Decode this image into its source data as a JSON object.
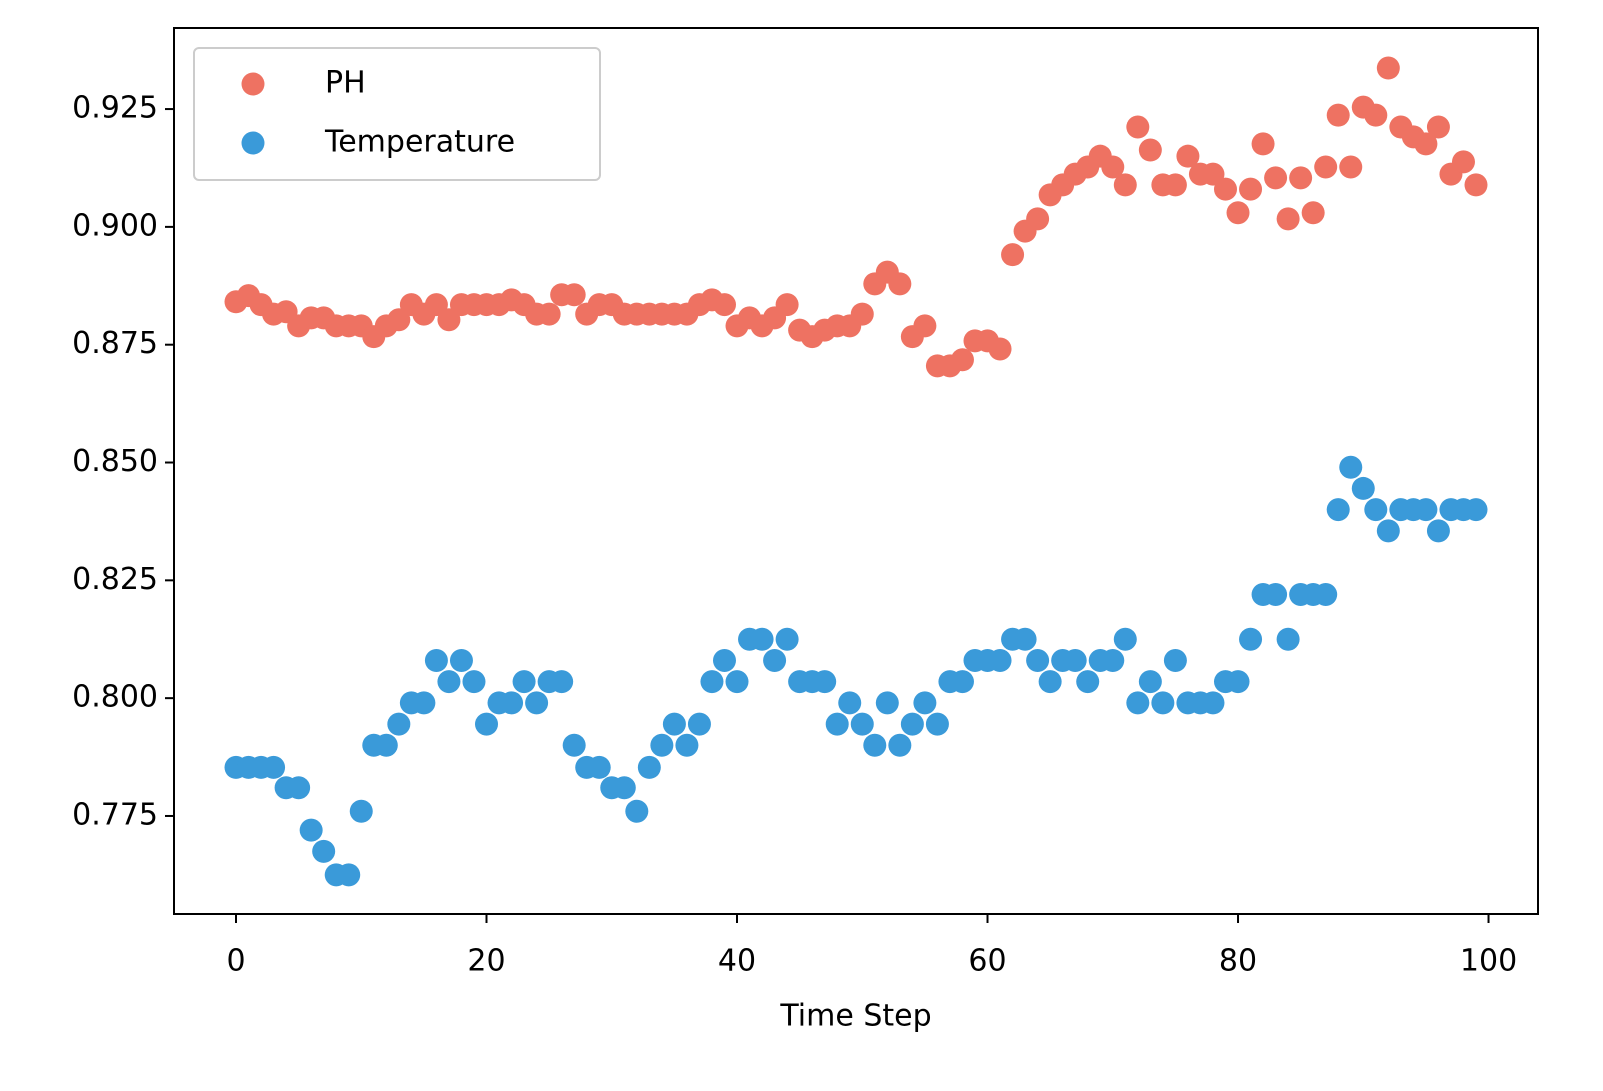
{
  "chart_data": {
    "type": "scatter",
    "xlabel": "Time Step",
    "x": [
      0,
      1,
      2,
      3,
      4,
      5,
      6,
      7,
      8,
      9,
      10,
      11,
      12,
      13,
      14,
      15,
      16,
      17,
      18,
      19,
      20,
      21,
      22,
      23,
      24,
      25,
      26,
      27,
      28,
      29,
      30,
      31,
      32,
      33,
      34,
      35,
      36,
      37,
      38,
      39,
      40,
      41,
      42,
      43,
      44,
      45,
      46,
      47,
      48,
      49,
      50,
      51,
      52,
      53,
      54,
      55,
      56,
      57,
      58,
      59,
      60,
      61,
      62,
      63,
      64,
      65,
      66,
      67,
      68,
      69,
      70,
      71,
      72,
      73,
      74,
      75,
      76,
      77,
      78,
      79,
      80,
      81,
      82,
      83,
      84,
      85,
      86,
      87,
      88,
      89,
      90,
      91,
      92,
      93,
      94,
      95,
      96,
      97,
      98,
      99
    ],
    "series": [
      {
        "name": "PH",
        "color": "#ee7262",
        "values": [
          0.8841,
          0.8854,
          0.8835,
          0.8815,
          0.882,
          0.879,
          0.8807,
          0.8807,
          0.879,
          0.879,
          0.879,
          0.8767,
          0.879,
          0.8803,
          0.8835,
          0.8815,
          0.8835,
          0.8803,
          0.8835,
          0.8835,
          0.8835,
          0.8835,
          0.8845,
          0.8835,
          0.8815,
          0.8815,
          0.8856,
          0.8856,
          0.8815,
          0.8835,
          0.8835,
          0.8815,
          0.8815,
          0.8815,
          0.8815,
          0.8815,
          0.8815,
          0.8835,
          0.8845,
          0.8835,
          0.879,
          0.8807,
          0.879,
          0.8807,
          0.8835,
          0.8781,
          0.8767,
          0.8781,
          0.879,
          0.879,
          0.8815,
          0.8879,
          0.8904,
          0.8879,
          0.8767,
          0.879,
          0.8705,
          0.8705,
          0.8718,
          0.8758,
          0.8758,
          0.8741,
          0.8941,
          0.8991,
          0.9017,
          0.9068,
          0.9089,
          0.9112,
          0.9127,
          0.915,
          0.9127,
          0.9089,
          0.9212,
          0.9163,
          0.9089,
          0.9089,
          0.915,
          0.9112,
          0.9112,
          0.908,
          0.903,
          0.908,
          0.9176,
          0.9104,
          0.9017,
          0.9104,
          0.903,
          0.9127,
          0.9237,
          0.9127,
          0.9254,
          0.9237,
          0.9337,
          0.9212,
          0.9191,
          0.9176,
          0.9212,
          0.9112,
          0.9138,
          0.9089
        ]
      },
      {
        "name": "Temperature",
        "color": "#3a9ad9",
        "values": [
          0.7853,
          0.7853,
          0.7853,
          0.7853,
          0.781,
          0.781,
          0.772,
          0.7675,
          0.7625,
          0.7625,
          0.776,
          0.79,
          0.79,
          0.7945,
          0.799,
          0.799,
          0.808,
          0.8035,
          0.808,
          0.8035,
          0.7945,
          0.799,
          0.799,
          0.8035,
          0.799,
          0.8035,
          0.8035,
          0.79,
          0.7853,
          0.7853,
          0.781,
          0.781,
          0.776,
          0.7853,
          0.79,
          0.7945,
          0.79,
          0.7945,
          0.8035,
          0.808,
          0.8035,
          0.8125,
          0.8125,
          0.808,
          0.8125,
          0.8035,
          0.8035,
          0.8035,
          0.7945,
          0.799,
          0.7945,
          0.79,
          0.799,
          0.79,
          0.7945,
          0.799,
          0.7945,
          0.8035,
          0.8035,
          0.808,
          0.808,
          0.808,
          0.8125,
          0.8125,
          0.808,
          0.8035,
          0.808,
          0.808,
          0.8035,
          0.808,
          0.808,
          0.8125,
          0.799,
          0.8035,
          0.799,
          0.808,
          0.799,
          0.799,
          0.799,
          0.8035,
          0.8035,
          0.8125,
          0.822,
          0.822,
          0.8125,
          0.822,
          0.822,
          0.822,
          0.84,
          0.849,
          0.8445,
          0.84,
          0.8355,
          0.84,
          0.84,
          0.84,
          0.8355,
          0.84,
          0.84,
          0.84
        ]
      }
    ],
    "xlim": [
      -4.95,
      103.95
    ],
    "ylim": [
      0.7542,
      0.9422
    ],
    "xticks": [
      0,
      20,
      40,
      60,
      80,
      100
    ],
    "yticks": [
      0.775,
      {
        "value": 0.8,
        "label": "0.800"
      },
      0.825,
      {
        "value": 0.85,
        "label": "0.850"
      },
      0.875,
      {
        "value": 0.9,
        "label": "0.900"
      },
      0.925
    ],
    "legend": "upper left"
  }
}
